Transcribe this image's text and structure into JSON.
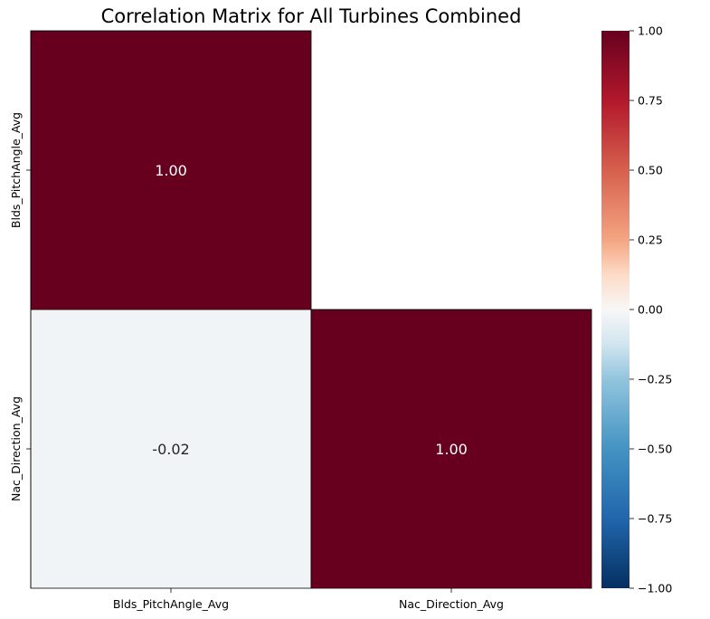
{
  "chart_data": {
    "type": "heatmap",
    "title": "Correlation Matrix for All Turbines Combined",
    "xlabel": "",
    "ylabel": "",
    "x_categories": [
      "Blds_PitchAngle_Avg",
      "Nac_Direction_Avg"
    ],
    "y_categories": [
      "Blds_PitchAngle_Avg",
      "Nac_Direction_Avg"
    ],
    "cells": [
      {
        "row": 0,
        "col": 0,
        "value": 1.0,
        "label": "1.00"
      },
      {
        "row": 1,
        "col": 0,
        "value": -0.02,
        "label": "-0.02"
      },
      {
        "row": 1,
        "col": 1,
        "value": 1.0,
        "label": "1.00"
      }
    ],
    "masked_cells": [
      {
        "row": 0,
        "col": 1
      }
    ],
    "colormap": "RdBu_r",
    "colorbar": {
      "vmin": -1.0,
      "vmax": 1.0,
      "ticks": [
        1.0,
        0.75,
        0.5,
        0.25,
        0.0,
        -0.25,
        -0.5,
        -0.75,
        -1.0
      ],
      "tick_labels": [
        "1.00",
        "0.75",
        "0.50",
        "0.25",
        "0.00",
        "−0.25",
        "−0.50",
        "−0.75",
        "−1.00"
      ]
    },
    "grid": false,
    "colors": {
      "cell_border": "#000000",
      "text_on_dark": "#ffffff",
      "text_on_light": "#262626"
    }
  }
}
